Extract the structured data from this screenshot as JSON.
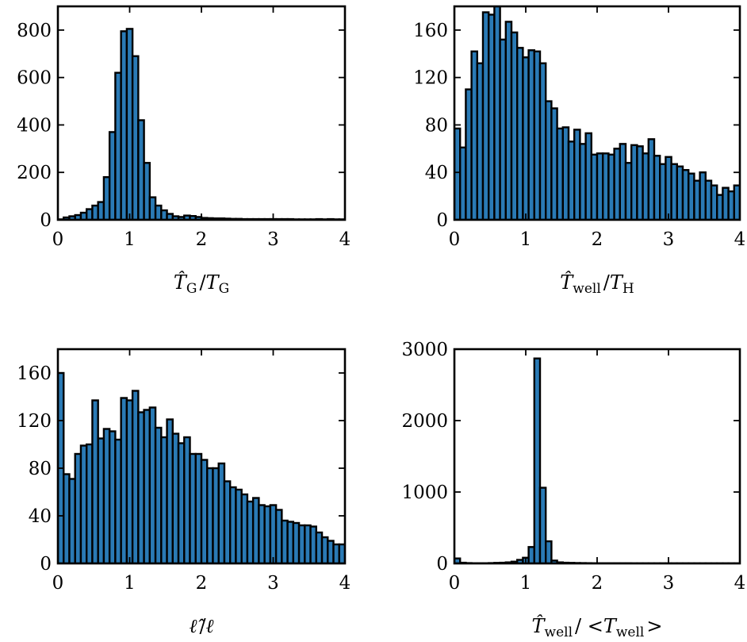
{
  "figure": {
    "bar_color": "#2a7ab5",
    "edge_color": "#000000",
    "background": "#ffffff"
  },
  "chart_data": [
    {
      "type": "bar",
      "id": "tg",
      "xlabel": {
        "parts": [
          "T̂",
          "G",
          "/",
          "T",
          "G"
        ]
      },
      "xlim": [
        0,
        4
      ],
      "ylim": [
        0,
        900
      ],
      "xticks": [
        0,
        1,
        2,
        3,
        4
      ],
      "xtick_labels": [
        "0",
        "1",
        "2",
        "3",
        "4"
      ],
      "yticks": [
        0,
        200,
        400,
        600,
        800
      ],
      "ytick_labels": [
        "0",
        "200",
        "400",
        "600",
        "800"
      ],
      "bin_width": 0.08,
      "values": [
        2,
        10,
        15,
        20,
        30,
        45,
        60,
        75,
        180,
        370,
        620,
        795,
        805,
        690,
        420,
        240,
        95,
        60,
        40,
        25,
        15,
        12,
        18,
        16,
        12,
        8,
        7,
        6,
        6,
        5,
        4,
        4,
        3,
        3,
        3,
        3,
        3,
        3,
        3,
        3,
        3,
        2,
        2,
        2,
        2,
        3,
        2,
        3,
        2,
        2
      ]
    },
    {
      "type": "bar",
      "id": "twell-th",
      "xlabel": {
        "parts": [
          "T̂",
          "well",
          "/",
          "T",
          "H"
        ]
      },
      "xlim": [
        0,
        4
      ],
      "ylim": [
        0,
        180
      ],
      "xticks": [
        0,
        1,
        2,
        3,
        4
      ],
      "xtick_labels": [
        "0",
        "1",
        "2",
        "3",
        "4"
      ],
      "yticks": [
        0,
        40,
        80,
        120,
        160
      ],
      "ytick_labels": [
        "0",
        "40",
        "80",
        "120",
        "160"
      ],
      "bin_width": 0.08,
      "values": [
        77,
        61,
        110,
        142,
        132,
        175,
        173,
        180,
        152,
        167,
        158,
        145,
        137,
        143,
        142,
        132,
        100,
        94,
        77,
        78,
        66,
        76,
        64,
        73,
        55,
        56,
        56,
        55,
        60,
        64,
        48,
        63,
        62,
        56,
        68,
        54,
        47,
        53,
        47,
        45,
        42,
        39,
        33,
        40,
        33,
        29,
        21,
        27,
        24,
        29
      ]
    },
    {
      "type": "bar",
      "id": "ell",
      "xlabel": {
        "parts": [
          "ℓ̂",
          "/",
          "ℓ"
        ]
      },
      "xlim": [
        0,
        4
      ],
      "ylim": [
        0,
        180
      ],
      "xticks": [
        0,
        1,
        2,
        3,
        4
      ],
      "xtick_labels": [
        "0",
        "1",
        "2",
        "3",
        "4"
      ],
      "yticks": [
        0,
        40,
        80,
        120,
        160
      ],
      "ytick_labels": [
        "0",
        "40",
        "80",
        "120",
        "160"
      ],
      "bin_width": 0.08,
      "values": [
        160,
        75,
        71,
        92,
        99,
        100,
        137,
        105,
        113,
        111,
        104,
        139,
        137,
        145,
        127,
        129,
        131,
        114,
        106,
        121,
        109,
        101,
        106,
        92,
        92,
        87,
        80,
        80,
        84,
        69,
        64,
        62,
        58,
        52,
        55,
        49,
        48,
        49,
        45,
        36,
        35,
        34,
        32,
        32,
        31,
        26,
        22,
        19,
        16,
        16
      ]
    },
    {
      "type": "bar",
      "id": "twell-mean",
      "xlabel": {
        "parts": [
          "T̂",
          "well",
          "/ <",
          "T",
          "well",
          ">"
        ]
      },
      "xlim": [
        0,
        4
      ],
      "ylim": [
        0,
        3000
      ],
      "xticks": [
        0,
        1,
        2,
        3,
        4
      ],
      "xtick_labels": [
        "0",
        "1",
        "2",
        "3",
        "4"
      ],
      "yticks": [
        0,
        1000,
        2000,
        3000
      ],
      "ytick_labels": [
        "0",
        "1000",
        "2000",
        "3000"
      ],
      "bin_width": 0.08,
      "values": [
        70,
        10,
        5,
        3,
        3,
        3,
        5,
        8,
        10,
        15,
        25,
        50,
        80,
        230,
        2870,
        1060,
        310,
        40,
        15,
        10,
        8,
        6,
        5,
        4,
        3,
        3,
        3,
        3,
        3,
        3,
        3,
        2,
        2,
        2,
        2,
        2,
        2,
        2,
        2,
        2,
        2,
        2,
        2,
        2,
        2,
        2,
        2,
        2,
        2,
        2
      ]
    }
  ]
}
